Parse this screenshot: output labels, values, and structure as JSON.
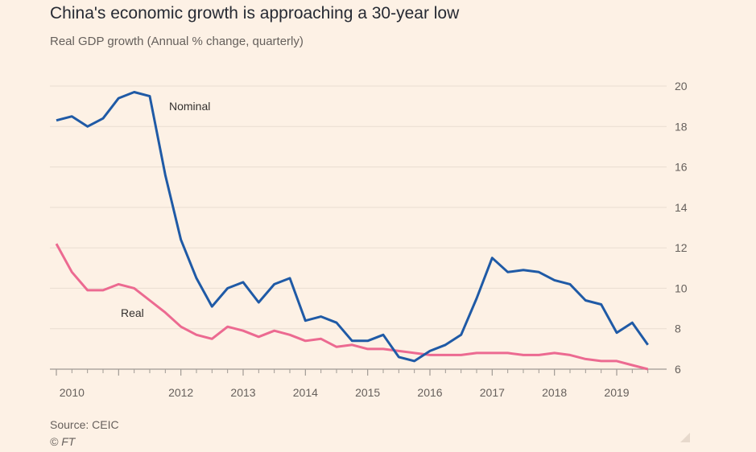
{
  "title": "China's economic growth is approaching a 30-year low",
  "subtitle": "Real GDP growth (Annual % change, quarterly)",
  "source": "Source: CEIC",
  "copyright": "© FT",
  "colors": {
    "background": "#fdf1e5",
    "nominal": "#1f5aa6",
    "real": "#ec6a91",
    "grid": "#e9ddd1",
    "axis": "#a09a94"
  },
  "chart_data": {
    "type": "line",
    "title": "",
    "xlabel": "",
    "ylabel": "",
    "ylim": [
      6,
      20
    ],
    "yticks": [
      6,
      8,
      10,
      12,
      14,
      16,
      18,
      20
    ],
    "y_axis_position": "right",
    "xlim": [
      2010.0,
      2019.75
    ],
    "xtick_labels": [
      "2010",
      "2012",
      "2013",
      "2014",
      "2015",
      "2016",
      "2017",
      "2018",
      "2019"
    ],
    "grid": "horizontal",
    "x": [
      2010.0,
      2010.25,
      2010.5,
      2010.75,
      2011.0,
      2011.25,
      2011.5,
      2011.75,
      2012.0,
      2012.25,
      2012.5,
      2012.75,
      2013.0,
      2013.25,
      2013.5,
      2013.75,
      2014.0,
      2014.25,
      2014.5,
      2014.75,
      2015.0,
      2015.25,
      2015.5,
      2015.75,
      2016.0,
      2016.25,
      2016.5,
      2016.75,
      2017.0,
      2017.25,
      2017.5,
      2017.75,
      2018.0,
      2018.25,
      2018.5,
      2018.75,
      2019.0,
      2019.25,
      2019.5
    ],
    "series": [
      {
        "name": "Nominal",
        "values": [
          18.3,
          18.5,
          18.0,
          18.4,
          19.4,
          19.7,
          19.5,
          15.6,
          12.4,
          10.5,
          9.1,
          10.0,
          10.3,
          9.3,
          10.2,
          10.5,
          8.4,
          8.6,
          8.3,
          7.4,
          7.4,
          7.7,
          6.6,
          6.4,
          6.9,
          7.2,
          7.7,
          9.5,
          11.5,
          10.8,
          10.9,
          10.8,
          10.4,
          10.2,
          9.4,
          9.2,
          7.8,
          8.3,
          7.2
        ]
      },
      {
        "name": "Real",
        "values": [
          12.2,
          10.8,
          9.9,
          9.9,
          10.2,
          10.0,
          9.4,
          8.8,
          8.1,
          7.7,
          7.5,
          8.1,
          7.9,
          7.6,
          7.9,
          7.7,
          7.4,
          7.5,
          7.1,
          7.2,
          7.0,
          7.0,
          6.9,
          6.8,
          6.7,
          6.7,
          6.7,
          6.8,
          6.8,
          6.8,
          6.7,
          6.7,
          6.8,
          6.7,
          6.5,
          6.4,
          6.4,
          6.2,
          6.0
        ]
      }
    ]
  }
}
